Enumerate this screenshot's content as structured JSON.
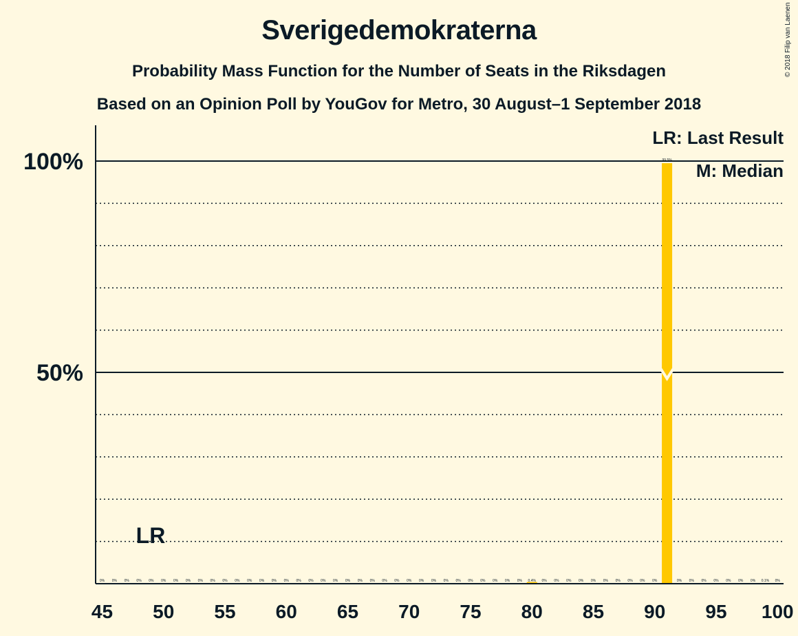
{
  "header": {
    "title": "Sverigedemokraterna",
    "subtitle": "Probability Mass Function for the Number of Seats in the Riksdagen",
    "subtitle2": "Based on an Opinion Poll by YouGov for Metro, 30 August–1 September 2018",
    "copyright": "© 2018 Filip van Laenen"
  },
  "legend": {
    "last_result": "LR: Last Result",
    "median": "M: Median"
  },
  "markers": {
    "last_result_label": "LR",
    "last_result_seat": 49,
    "median_seat": 91
  },
  "colors": {
    "bar": "#FFC800",
    "background": "#FFF9E1",
    "text": "#0B1A26"
  },
  "chart_data": {
    "type": "bar",
    "title": "Sverigedemokraterna",
    "xlabel": "",
    "ylabel": "",
    "xlim": [
      45,
      100
    ],
    "ylim": [
      0,
      100
    ],
    "x_ticks": [
      45,
      50,
      55,
      60,
      65,
      70,
      75,
      80,
      85,
      90,
      95,
      100
    ],
    "y_ticks": [
      {
        "value": 50,
        "label": "50%"
      },
      {
        "value": 100,
        "label": "100%"
      }
    ],
    "grid": "dotted every 10%",
    "legend_position": "top-right",
    "categories": [
      45,
      46,
      47,
      48,
      49,
      50,
      51,
      52,
      53,
      54,
      55,
      56,
      57,
      58,
      59,
      60,
      61,
      62,
      63,
      64,
      65,
      66,
      67,
      68,
      69,
      70,
      71,
      72,
      73,
      74,
      75,
      76,
      77,
      78,
      79,
      80,
      81,
      82,
      83,
      84,
      85,
      86,
      87,
      88,
      89,
      90,
      91,
      92,
      93,
      94,
      95,
      96,
      97,
      98,
      99,
      100
    ],
    "values": [
      0,
      0,
      0,
      0,
      0,
      0,
      0,
      0,
      0,
      0,
      0,
      0,
      0,
      0,
      0,
      0,
      0,
      0,
      0,
      0,
      0,
      0,
      0,
      0,
      0,
      0,
      0,
      0,
      0,
      0,
      0,
      0,
      0,
      0,
      0,
      0.4,
      0,
      0,
      0,
      0,
      0,
      0,
      0,
      0,
      0,
      0,
      99.5,
      0,
      0,
      0,
      0,
      0,
      0,
      0,
      0.1,
      0
    ],
    "labels": [
      "0%",
      "0%",
      "0%",
      "0%",
      "0%",
      "0%",
      "0%",
      "0%",
      "0%",
      "0%",
      "0%",
      "0%",
      "0%",
      "0%",
      "0%",
      "0%",
      "0%",
      "0%",
      "0%",
      "0%",
      "0%",
      "0%",
      "0%",
      "0%",
      "0%",
      "0%",
      "0%",
      "0%",
      "0%",
      "0%",
      "0%",
      "0%",
      "0%",
      "0%",
      "0%",
      "0.4%",
      "0%",
      "0%",
      "0%",
      "0%",
      "0%",
      "0%",
      "0%",
      "0%",
      "0%",
      "0%",
      "99.5%",
      "0%",
      "0%",
      "0%",
      "0%",
      "0%",
      "0%",
      "0%",
      "0.1%",
      "0%"
    ]
  }
}
